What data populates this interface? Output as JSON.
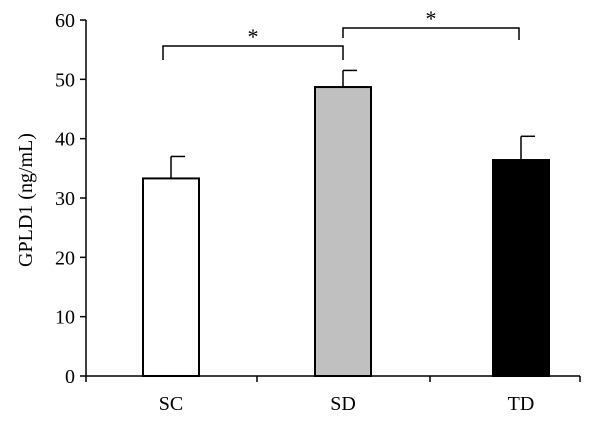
{
  "chart_data": {
    "type": "bar",
    "title": "",
    "xlabel": "",
    "ylabel": "GPLD1 (ng/mL)",
    "ylim": [
      0,
      60
    ],
    "yticks": [
      0,
      10,
      20,
      30,
      40,
      50,
      60
    ],
    "grid": false,
    "categories": [
      "SC",
      "SD",
      "TD"
    ],
    "values": [
      33.3,
      48.7,
      36.4
    ],
    "errors": [
      3.7,
      2.8,
      4.0
    ],
    "colors": [
      "#ffffff",
      "#c0c0c0",
      "#000000"
    ],
    "significance": [
      {
        "from": "SC",
        "to": "SD",
        "label": "*"
      },
      {
        "from": "SD",
        "to": "TD",
        "label": "*"
      }
    ]
  }
}
